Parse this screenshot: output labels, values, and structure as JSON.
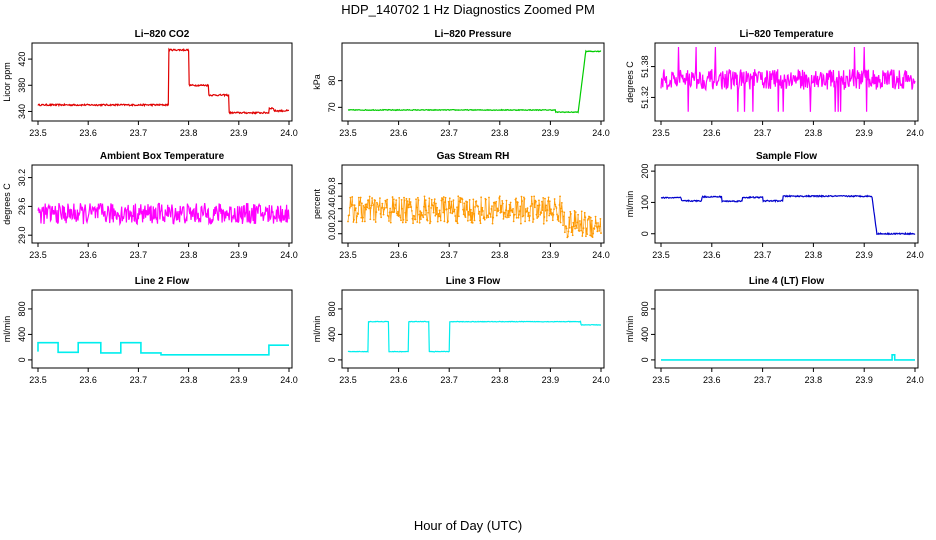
{
  "title": "HDP_140702  1 Hz Diagnostics Zoomed PM",
  "xlabel": "Hour of Day (UTC)",
  "chart_data": [
    {
      "type": "line",
      "title": "Li−820 CO2",
      "ylabel": "Licor ppm",
      "color": "#e00000",
      "xlim": [
        23.5,
        24.0
      ],
      "ylim": [
        330,
        440
      ],
      "xticks": [
        "23.5",
        "23.6",
        "23.7",
        "23.8",
        "23.9",
        "24.0"
      ],
      "yticks": [
        340,
        380,
        420
      ],
      "x": [
        23.5,
        23.76,
        23.76,
        23.8,
        23.8,
        23.84,
        23.84,
        23.88,
        23.88,
        23.96,
        23.96,
        23.97,
        23.97,
        24.0
      ],
      "y": [
        350,
        350,
        434,
        434,
        380,
        380,
        365,
        365,
        338,
        338,
        345,
        345,
        341,
        341
      ],
      "noise": 1.2
    },
    {
      "type": "line",
      "title": "Li−820 Pressure",
      "ylabel": "kPa",
      "color": "#00cc00",
      "xlim": [
        23.5,
        24.0
      ],
      "ylim": [
        66,
        93
      ],
      "xticks": [
        "23.5",
        "23.6",
        "23.7",
        "23.8",
        "23.9",
        "24.0"
      ],
      "yticks": [
        70,
        80
      ],
      "x": [
        23.5,
        23.91,
        23.91,
        23.955,
        23.97,
        24.0
      ],
      "y": [
        69,
        69,
        68.2,
        68.2,
        91,
        91
      ],
      "noise": 0.15
    },
    {
      "type": "line",
      "title": "Li−820 Temperature",
      "ylabel": "degrees C",
      "color": "#ff00ff",
      "xlim": [
        23.5,
        24.0
      ],
      "ylim": [
        51.28,
        51.42
      ],
      "xticks": [
        "23.5",
        "23.6",
        "23.7",
        "23.8",
        "23.9",
        "24.0"
      ],
      "yticks": [
        "51.32",
        "51.38"
      ],
      "x": [
        23.5,
        24.0
      ],
      "y": [
        51.355,
        51.355
      ],
      "noise": 0.02,
      "spikes": true
    },
    {
      "type": "line",
      "title": "Ambient Box Temperature",
      "ylabel": "degrees C",
      "color": "#ff00ff",
      "xlim": [
        23.5,
        24.0
      ],
      "ylim": [
        28.9,
        30.4
      ],
      "xticks": [
        "23.5",
        "23.6",
        "23.7",
        "23.8",
        "23.9",
        "24.0"
      ],
      "yticks": [
        "29.0",
        "29.6",
        "30.2"
      ],
      "x": [
        23.5,
        24.0
      ],
      "y": [
        29.45,
        29.45
      ],
      "noise": 0.22
    },
    {
      "type": "scatter",
      "title": "Gas Stream RH",
      "ylabel": "percent",
      "color": "#ff9900",
      "xlim": [
        23.5,
        24.0
      ],
      "ylim": [
        -0.1,
        1.05
      ],
      "xticks": [
        "23.5",
        "23.6",
        "23.7",
        "23.8",
        "23.9",
        "24.0"
      ],
      "yticks": [
        "0.0",
        "0.2",
        "0.4",
        "0.6",
        "0.8"
      ],
      "x": [
        23.5,
        23.92,
        23.93,
        24.0
      ],
      "y": [
        0.38,
        0.38,
        0.15,
        0.15
      ],
      "noise": 0.22
    },
    {
      "type": "line",
      "title": "Sample Flow",
      "ylabel": "ml/min",
      "color": "#0000cc",
      "xlim": [
        23.5,
        24.0
      ],
      "ylim": [
        -20,
        210
      ],
      "xticks": [
        "23.5",
        "23.6",
        "23.7",
        "23.8",
        "23.9",
        "24.0"
      ],
      "yticks": [
        0,
        100,
        200
      ],
      "x": [
        23.5,
        23.54,
        23.54,
        23.58,
        23.58,
        23.62,
        23.62,
        23.66,
        23.66,
        23.7,
        23.7,
        23.74,
        23.74,
        23.915,
        23.925,
        24.0
      ],
      "y": [
        115,
        115,
        105,
        105,
        118,
        118,
        104,
        104,
        116,
        116,
        105,
        105,
        120,
        120,
        0,
        0
      ],
      "noise": 2
    },
    {
      "type": "line",
      "title": "Line 2 Flow",
      "ylabel": "ml/min",
      "color": "#00eeee",
      "xlim": [
        23.5,
        24.0
      ],
      "ylim": [
        -80,
        1050
      ],
      "xticks": [
        "23.5",
        "23.6",
        "23.7",
        "23.8",
        "23.9",
        "24.0"
      ],
      "yticks": [
        0,
        400,
        800
      ],
      "x": [
        23.5,
        23.5,
        23.54,
        23.54,
        23.58,
        23.58,
        23.625,
        23.625,
        23.665,
        23.665,
        23.705,
        23.705,
        23.745,
        23.745,
        23.96,
        23.96,
        24.0
      ],
      "y": [
        130,
        270,
        270,
        120,
        120,
        270,
        270,
        110,
        110,
        270,
        270,
        110,
        110,
        80,
        80,
        230,
        230
      ],
      "noise": 0
    },
    {
      "type": "line",
      "title": "Line 3 Flow",
      "ylabel": "ml/min",
      "color": "#00eeee",
      "xlim": [
        23.5,
        24.0
      ],
      "ylim": [
        -80,
        1050
      ],
      "xticks": [
        "23.5",
        "23.6",
        "23.7",
        "23.8",
        "23.9",
        "24.0"
      ],
      "yticks": [
        0,
        400,
        800
      ],
      "x": [
        23.5,
        23.5,
        23.54,
        23.54,
        23.58,
        23.58,
        23.62,
        23.62,
        23.66,
        23.66,
        23.7,
        23.7,
        23.96,
        23.96,
        24.0
      ],
      "y": [
        600,
        130,
        130,
        600,
        600,
        130,
        130,
        600,
        600,
        130,
        130,
        600,
        600,
        550,
        550
      ],
      "noise": 4
    },
    {
      "type": "line",
      "title": "Line 4 (LT) Flow",
      "ylabel": "ml/min",
      "color": "#00eeee",
      "xlim": [
        23.5,
        24.0
      ],
      "ylim": [
        -80,
        1050
      ],
      "xticks": [
        "23.5",
        "23.6",
        "23.7",
        "23.8",
        "23.9",
        "24.0"
      ],
      "yticks": [
        0,
        400,
        800
      ],
      "x": [
        23.5,
        23.955,
        23.955,
        23.96,
        23.96,
        24.0
      ],
      "y": [
        0,
        0,
        80,
        80,
        0,
        0
      ],
      "noise": 0
    }
  ]
}
